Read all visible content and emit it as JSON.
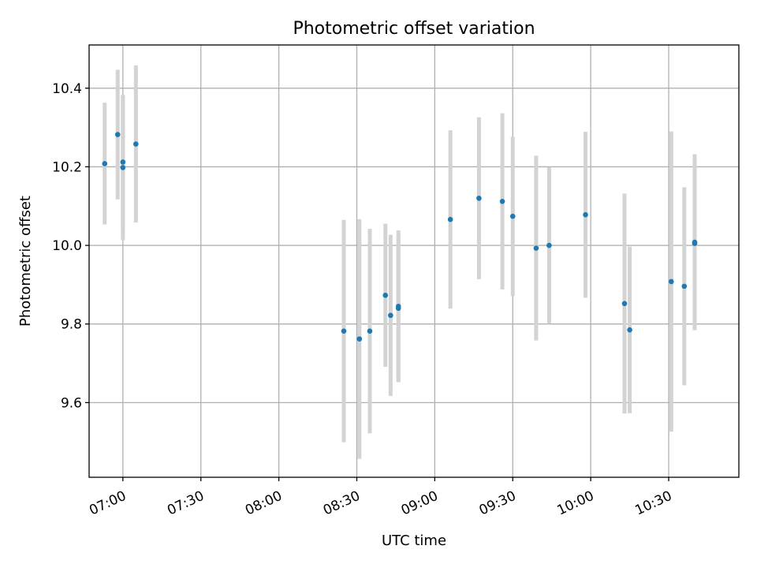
{
  "chart_data": {
    "type": "scatter",
    "title": "Photometric offset variation",
    "xlabel": "UTC time",
    "ylabel": "Photometric offset",
    "x_unit": "time of day (HH:MM)",
    "xlim": [
      "06:47",
      "10:57"
    ],
    "ylim": [
      9.41,
      10.51
    ],
    "x_ticks": [
      "07:00",
      "07:30",
      "08:00",
      "08:30",
      "09:00",
      "09:30",
      "10:00",
      "10:30"
    ],
    "y_ticks": [
      9.6,
      9.8,
      10.0,
      10.2,
      10.4
    ],
    "y_tick_labels": [
      "9.6",
      "9.8",
      "10.0",
      "10.2",
      "10.4"
    ],
    "grid": true,
    "point_color": "#1f77b4",
    "errorbar_color": "#d3d3d3",
    "points": [
      {
        "x": "06:53",
        "y": 10.208,
        "err": 0.155
      },
      {
        "x": "06:58",
        "y": 10.282,
        "err": 0.165
      },
      {
        "x": "07:00",
        "y": 10.212,
        "err": 0.17
      },
      {
        "x": "07:00",
        "y": 10.198,
        "err": 0.185
      },
      {
        "x": "07:05",
        "y": 10.258,
        "err": 0.2
      },
      {
        "x": "08:25",
        "y": 9.782,
        "err": 0.283
      },
      {
        "x": "08:31",
        "y": 9.762,
        "err": 0.305
      },
      {
        "x": "08:35",
        "y": 9.782,
        "err": 0.26
      },
      {
        "x": "08:41",
        "y": 9.873,
        "err": 0.182
      },
      {
        "x": "08:43",
        "y": 9.822,
        "err": 0.205
      },
      {
        "x": "08:46",
        "y": 9.84,
        "err": 0.185
      },
      {
        "x": "08:46",
        "y": 9.845,
        "err": 0.193
      },
      {
        "x": "09:06",
        "y": 10.066,
        "err": 0.227
      },
      {
        "x": "09:17",
        "y": 10.12,
        "err": 0.206
      },
      {
        "x": "09:26",
        "y": 10.112,
        "err": 0.224
      },
      {
        "x": "09:30",
        "y": 10.074,
        "err": 0.203
      },
      {
        "x": "09:39",
        "y": 9.993,
        "err": 0.235
      },
      {
        "x": "09:44",
        "y": 10.0,
        "err": 0.199
      },
      {
        "x": "09:58",
        "y": 10.078,
        "err": 0.211
      },
      {
        "x": "10:13",
        "y": 9.852,
        "err": 0.28
      },
      {
        "x": "10:15",
        "y": 9.785,
        "err": 0.212
      },
      {
        "x": "10:31",
        "y": 9.908,
        "err": 0.382
      },
      {
        "x": "10:36",
        "y": 9.896,
        "err": 0.252
      },
      {
        "x": "10:40",
        "y": 10.008,
        "err": 0.224
      },
      {
        "x": "10:40",
        "y": 10.005,
        "err": 0.22
      }
    ]
  }
}
